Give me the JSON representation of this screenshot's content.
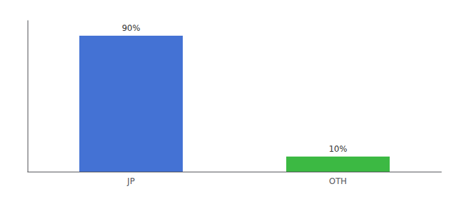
{
  "chart_data": {
    "type": "bar",
    "categories": [
      "JP",
      "OTH"
    ],
    "values": [
      90,
      10
    ],
    "value_labels": [
      "90%",
      "10%"
    ],
    "data_labels": true,
    "colors": [
      "#4472d4",
      "#3cb943"
    ],
    "ylim": [
      0,
      100
    ],
    "yticks": [],
    "tick_labels": "x",
    "grid": false
  }
}
